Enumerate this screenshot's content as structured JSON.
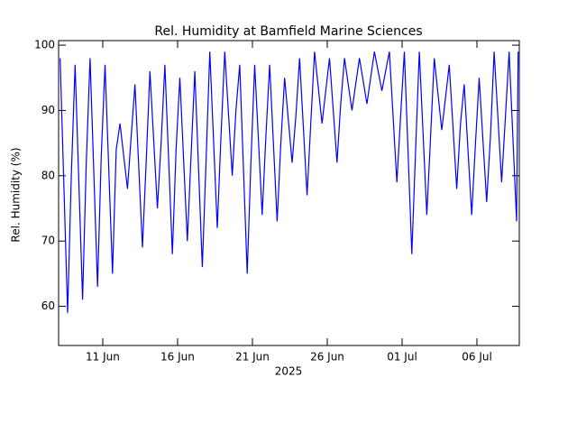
{
  "chart_data": {
    "type": "line",
    "title": "Rel. Humidity at Bamfield Marine Sciences",
    "ylabel": "Rel. Humidity (%)",
    "xlabel": "2025",
    "xlim": [
      159.05,
      189.83
    ],
    "xticks": [
      {
        "value": 162,
        "label": "11 Jun"
      },
      {
        "value": 167,
        "label": "16 Jun"
      },
      {
        "value": 172,
        "label": "21 Jun"
      },
      {
        "value": 177,
        "label": "26 Jun"
      },
      {
        "value": 182,
        "label": "01 Jul"
      },
      {
        "value": 187,
        "label": "06 Jul"
      }
    ],
    "ylim": [
      54,
      100.7
    ],
    "yticks": [
      60,
      70,
      80,
      90,
      100
    ],
    "series": [
      {
        "color": "#0000ff",
        "x": [
          159.15,
          159.65,
          159.9,
          160.15,
          160.65,
          160.9,
          161.15,
          161.65,
          161.9,
          162.15,
          162.65,
          162.9,
          163.15,
          163.65,
          163.9,
          164.15,
          164.65,
          164.9,
          165.15,
          165.65,
          165.9,
          166.15,
          166.65,
          166.9,
          167.15,
          167.65,
          167.9,
          168.15,
          168.65,
          168.9,
          169.15,
          169.65,
          169.9,
          170.15,
          170.65,
          170.9,
          171.15,
          171.65,
          171.9,
          172.15,
          172.65,
          172.9,
          173.15,
          173.65,
          173.9,
          174.15,
          174.65,
          174.9,
          175.15,
          175.65,
          175.9,
          176.15,
          176.65,
          176.9,
          177.15,
          177.65,
          177.9,
          178.15,
          178.65,
          178.9,
          179.15,
          179.65,
          179.9,
          180.15,
          180.65,
          180.9,
          181.15,
          181.65,
          181.9,
          182.15,
          182.65,
          182.9,
          183.15,
          183.65,
          183.9,
          184.15,
          184.65,
          184.9,
          185.15,
          185.65,
          185.9,
          186.15,
          186.65,
          186.9,
          187.15,
          187.65,
          187.9,
          188.15,
          188.65,
          188.9,
          189.15,
          189.65,
          189.75
        ],
        "values": [
          98,
          59,
          80,
          97,
          61,
          82,
          98,
          63,
          83,
          97,
          65,
          84,
          88,
          78,
          86,
          94,
          69,
          82,
          96,
          75,
          85,
          97,
          68,
          84,
          95,
          70,
          83,
          96,
          66,
          82,
          99,
          72,
          86,
          99,
          80,
          90,
          97,
          65,
          82,
          97,
          74,
          86,
          97,
          73,
          85,
          95,
          82,
          89,
          98,
          77,
          88,
          99,
          88,
          93,
          98,
          82,
          91,
          98,
          90,
          94,
          98,
          91,
          95,
          99,
          93,
          96,
          99,
          79,
          89,
          99,
          68,
          84,
          99,
          74,
          86,
          98,
          87,
          92,
          97,
          78,
          88,
          94,
          74,
          85,
          95,
          76,
          86,
          99,
          79,
          89,
          99,
          73,
          99
        ]
      }
    ]
  }
}
